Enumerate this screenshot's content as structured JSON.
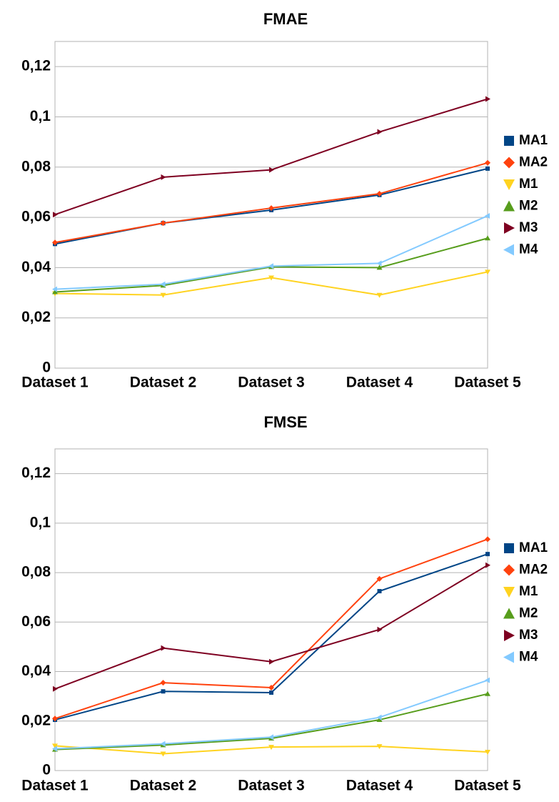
{
  "chart_data": [
    {
      "type": "line",
      "title": "FMAE",
      "categories": [
        "Dataset 1",
        "Dataset 2",
        "Dataset 3",
        "Dataset 4",
        "Dataset 5"
      ],
      "ylim": [
        0,
        0.13
      ],
      "yticks": [
        0,
        {
          "value": 0.02,
          "label": "0,02"
        },
        {
          "value": 0.04,
          "label": "0,04"
        },
        {
          "value": 0.06,
          "label": "0,06"
        },
        {
          "value": 0.08,
          "label": "0,08"
        },
        {
          "value": 0.1,
          "label": "0,1"
        },
        {
          "value": 0.12,
          "label": "0,12"
        }
      ],
      "grid": true,
      "legend": "right",
      "series": [
        {
          "name": "MA1",
          "color": "#004586",
          "marker": "square",
          "values": [
            0.0494,
            0.0577,
            0.0629,
            0.0689,
            0.0794
          ]
        },
        {
          "name": "MA2",
          "color": "#ff420e",
          "marker": "diamond",
          "values": [
            0.05,
            0.0577,
            0.0637,
            0.0694,
            0.0817
          ]
        },
        {
          "name": "M1",
          "color": "#ffd320",
          "marker": "triangle-down",
          "values": [
            0.0297,
            0.0291,
            0.036,
            0.0291,
            0.0383
          ]
        },
        {
          "name": "M2",
          "color": "#579d1c",
          "marker": "triangle-up",
          "values": [
            0.0303,
            0.0329,
            0.0403,
            0.04,
            0.0517
          ]
        },
        {
          "name": "M3",
          "color": "#7e0021",
          "marker": "triangle-right",
          "values": [
            0.0611,
            0.076,
            0.0789,
            0.094,
            0.1071
          ]
        },
        {
          "name": "M4",
          "color": "#83caff",
          "marker": "triangle-left",
          "values": [
            0.0314,
            0.0334,
            0.0406,
            0.0417,
            0.0606
          ]
        }
      ]
    },
    {
      "type": "line",
      "title": "FMSE",
      "categories": [
        "Dataset 1",
        "Dataset 2",
        "Dataset 3",
        "Dataset 4",
        "Dataset 5"
      ],
      "ylim": [
        0,
        0.13
      ],
      "yticks": [
        0,
        {
          "value": 0.02,
          "label": "0,02"
        },
        {
          "value": 0.04,
          "label": "0,04"
        },
        {
          "value": 0.06,
          "label": "0,06"
        },
        {
          "value": 0.08,
          "label": "0,08"
        },
        {
          "value": 0.1,
          "label": "0,1"
        },
        {
          "value": 0.12,
          "label": "0,12"
        }
      ],
      "grid": true,
      "legend": "right",
      "series": [
        {
          "name": "MA1",
          "color": "#004586",
          "marker": "square",
          "values": [
            0.0205,
            0.032,
            0.0315,
            0.0725,
            0.0875
          ]
        },
        {
          "name": "MA2",
          "color": "#ff420e",
          "marker": "diamond",
          "values": [
            0.021,
            0.0355,
            0.0335,
            0.0775,
            0.0935
          ]
        },
        {
          "name": "M1",
          "color": "#ffd320",
          "marker": "triangle-down",
          "values": [
            0.01,
            0.0068,
            0.0095,
            0.0098,
            0.0075
          ]
        },
        {
          "name": "M2",
          "color": "#579d1c",
          "marker": "triangle-up",
          "values": [
            0.0085,
            0.0103,
            0.013,
            0.0205,
            0.031
          ]
        },
        {
          "name": "M3",
          "color": "#7e0021",
          "marker": "triangle-right",
          "values": [
            0.033,
            0.0495,
            0.044,
            0.057,
            0.083
          ]
        },
        {
          "name": "M4",
          "color": "#83caff",
          "marker": "triangle-left",
          "values": [
            0.0088,
            0.0108,
            0.0135,
            0.0215,
            0.0365
          ]
        }
      ]
    }
  ]
}
